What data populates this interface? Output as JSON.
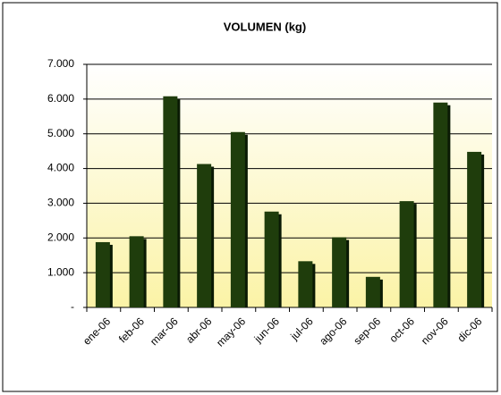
{
  "chart_data": {
    "type": "bar",
    "title": "VOLUMEN (kg)",
    "categories": [
      "ene-06",
      "feb-06",
      "mar-06",
      "abr-06",
      "may-06",
      "jun-06",
      "jul-06",
      "ago-06",
      "sep-06",
      "oct-06",
      "nov-06",
      "dic-06"
    ],
    "values": [
      1880,
      2050,
      6080,
      4130,
      5050,
      2760,
      1330,
      2020,
      880,
      3060,
      5900,
      4480
    ],
    "color": "#1f3d0c",
    "ylim": [
      0,
      7000
    ],
    "yticks": [
      {
        "value": 0,
        "label": "-"
      },
      {
        "value": 1000,
        "label": "1.000"
      },
      {
        "value": 2000,
        "label": "2.000"
      },
      {
        "value": 3000,
        "label": "3.000"
      },
      {
        "value": 4000,
        "label": "4.000"
      },
      {
        "value": 5000,
        "label": "5.000"
      },
      {
        "value": 6000,
        "label": "6.000"
      },
      {
        "value": 7000,
        "label": "7.000"
      }
    ],
    "grid": true
  }
}
